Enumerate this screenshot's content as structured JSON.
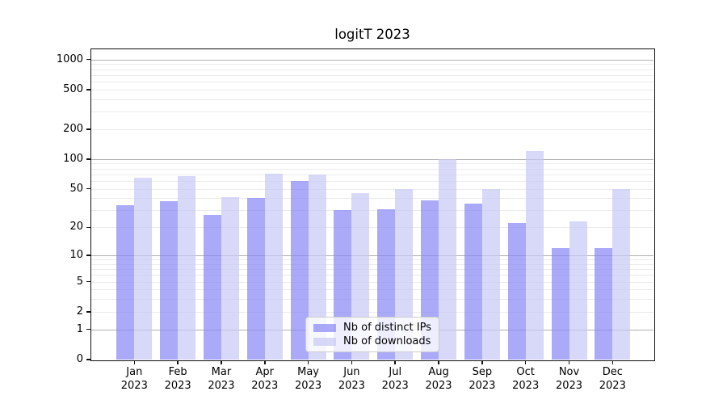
{
  "title": "logitT 2023",
  "chart_data": {
    "type": "bar",
    "title": "logitT 2023",
    "xlabel": "",
    "ylabel": "",
    "categories": [
      "Jan 2023",
      "Feb 2023",
      "Mar 2023",
      "Apr 2023",
      "May 2023",
      "Jun 2023",
      "Jul 2023",
      "Aug 2023",
      "Sep 2023",
      "Oct 2023",
      "Nov 2023",
      "Dec 2023"
    ],
    "series": [
      {
        "name": "Nb of distinct IPs",
        "color": "#8686f5",
        "alpha": 0.7,
        "values": [
          34,
          37,
          27,
          40,
          60,
          30,
          31,
          38,
          35,
          22,
          12,
          12
        ]
      },
      {
        "name": "Nb of downloads",
        "color": "#c7c7f5",
        "alpha": 0.7,
        "values": [
          65,
          67,
          41,
          71,
          70,
          45,
          50,
          100,
          50,
          120,
          23,
          50
        ]
      }
    ],
    "yscale": "log1p",
    "ylim": [
      0,
      1264
    ],
    "yticks": [
      0,
      1,
      2,
      5,
      10,
      20,
      50,
      100,
      200,
      500,
      1000
    ],
    "grid": {
      "major": [
        1,
        10,
        100,
        1000
      ],
      "minor": [
        2,
        3,
        4,
        5,
        6,
        7,
        8,
        9,
        20,
        30,
        40,
        50,
        60,
        70,
        80,
        90,
        200,
        300,
        400,
        500,
        600,
        700,
        800,
        900
      ],
      "major_color": "#b0b0b0",
      "minor_color": "#ebebeb"
    },
    "legend_position": "lower center"
  }
}
